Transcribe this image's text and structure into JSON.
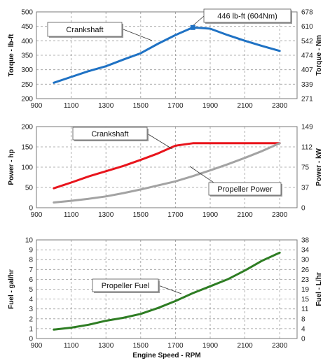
{
  "chart_data": [
    {
      "type": "line",
      "x": [
        1000,
        1100,
        1200,
        1300,
        1400,
        1500,
        1600,
        1700,
        1800,
        1900,
        2000,
        2100,
        2200,
        2300
      ],
      "xlim": [
        900,
        2400
      ],
      "xticks": [
        "900",
        "1100",
        "1300",
        "1500",
        "1700",
        "1900",
        "2100",
        "2300"
      ],
      "xlabel": "",
      "ylabel": "Torque - lb-ft",
      "ylim": [
        200,
        500
      ],
      "yticks": [
        "200",
        "250",
        "300",
        "350",
        "400",
        "450",
        "500"
      ],
      "y2label": "Torque - Nm",
      "y2ticks": [
        "271",
        "339",
        "407",
        "474",
        "542",
        "610",
        "678"
      ],
      "grid": true,
      "series": [
        {
          "name": "Crankshaft",
          "color": "#1f72c4",
          "values": [
            255,
            275,
            295,
            312,
            335,
            357,
            390,
            420,
            446,
            442,
            420,
            400,
            382,
            365
          ]
        }
      ],
      "annotations": [
        {
          "text": "Crankshaft",
          "series": 0
        },
        {
          "text": "446 lb-ft (604Nm)",
          "x": 1800,
          "y": 446,
          "marker": true
        }
      ]
    },
    {
      "type": "line",
      "x": [
        1000,
        1100,
        1200,
        1300,
        1400,
        1500,
        1600,
        1700,
        1800,
        1900,
        2000,
        2100,
        2200,
        2300
      ],
      "xlim": [
        900,
        2400
      ],
      "xticks": [
        "900",
        "1100",
        "1300",
        "1500",
        "1700",
        "1900",
        "2100",
        "2300"
      ],
      "xlabel": "",
      "ylabel": "Power - hp",
      "ylim": [
        0,
        200
      ],
      "yticks": [
        "0",
        "50",
        "100",
        "150",
        "200"
      ],
      "y2label": "Power - kW",
      "y2ticks": [
        "0",
        "37",
        "75",
        "112",
        "149"
      ],
      "grid": true,
      "series": [
        {
          "name": "Crankshaft",
          "color": "#e8141c",
          "values": [
            48,
            62,
            77,
            90,
            103,
            118,
            134,
            153,
            159,
            159,
            159,
            159,
            159,
            159
          ]
        },
        {
          "name": "Propeller Power",
          "color": "#a3a3a3",
          "values": [
            13,
            17,
            22,
            28,
            36,
            45,
            55,
            65,
            78,
            92,
            107,
            123,
            140,
            159
          ]
        }
      ],
      "annotations": [
        {
          "text": "Crankshaft",
          "series": 0
        },
        {
          "text": "Propeller Power",
          "series": 1
        }
      ]
    },
    {
      "type": "line",
      "x": [
        1000,
        1100,
        1200,
        1300,
        1400,
        1500,
        1600,
        1700,
        1800,
        1900,
        2000,
        2100,
        2200,
        2300
      ],
      "xlim": [
        900,
        2400
      ],
      "xticks": [
        "900",
        "1100",
        "1300",
        "1500",
        "1700",
        "1900",
        "2100",
        "2300"
      ],
      "xlabel": "Engine Speed - RPM",
      "ylabel": "Fuel - gal/hr",
      "ylim": [
        0,
        10
      ],
      "yticks": [
        "0",
        "1",
        "2",
        "3",
        "4",
        "5",
        "6",
        "7",
        "8",
        "9",
        "10"
      ],
      "y2label": "Fuel - L/hr",
      "y2ticks": [
        "0",
        "4",
        "8",
        "11",
        "15",
        "19",
        "23",
        "26",
        "30",
        "34",
        "38"
      ],
      "grid": true,
      "series": [
        {
          "name": "Propeller Fuel",
          "color": "#2e7d23",
          "values": [
            0.9,
            1.1,
            1.4,
            1.8,
            2.1,
            2.5,
            3.1,
            3.8,
            4.6,
            5.3,
            6.0,
            6.9,
            7.9,
            8.7
          ]
        }
      ],
      "annotations": [
        {
          "text": "Propeller Fuel",
          "series": 0
        }
      ]
    }
  ]
}
